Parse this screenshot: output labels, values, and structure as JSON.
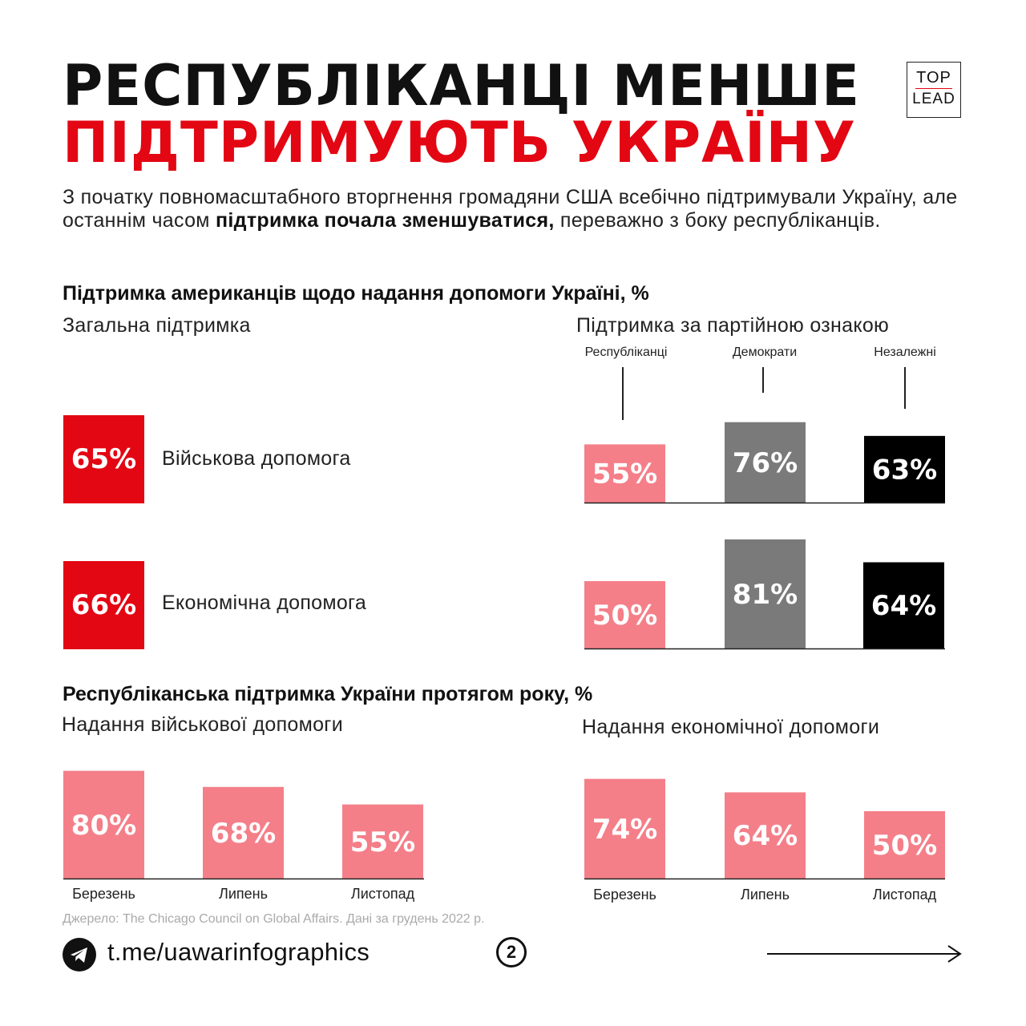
{
  "header": {
    "title_line1": "РЕСПУБЛІКАНЦІ МЕНШЕ",
    "title_line2": "ПІДТРИМУЮТЬ УКРАЇНУ",
    "logo_top": "TOP",
    "logo_bottom": "LEAD"
  },
  "intro": {
    "part1": "З початку повномасштабного вторгнення громадяни США всебічно підтримували Україну, але останнім часом ",
    "bold": "підтримка почала зменшуватися,",
    "part2": " переважно з боку республіканців."
  },
  "section1": {
    "heading": "Підтримка американців щодо надання допомоги Україні, %",
    "left_subheading": "Загальна підтримка",
    "right_subheading": "Підтримка за партійною ознакою",
    "party_labels": [
      "Республіканці",
      "Демократи",
      "Незалежні"
    ],
    "overall": [
      {
        "value": "65%",
        "label": "Військова допомога"
      },
      {
        "value": "66%",
        "label": "Економічна допомога"
      }
    ]
  },
  "section2": {
    "heading": "Республіканська підтримка України протягом року, %",
    "left_subheading": "Надання військової допомоги",
    "right_subheading": "Надання економічної допомоги"
  },
  "colors": {
    "red": "#e30613",
    "pink": "#f47f89",
    "gray": "#7a7a7a",
    "black": "#000000"
  },
  "chart_data": [
    {
      "type": "bar",
      "title": "Військова допомога — за партійною ознакою",
      "categories": [
        "Республіканці",
        "Демократи",
        "Незалежні"
      ],
      "values": [
        55,
        76,
        63
      ],
      "labels": [
        "55%",
        "76%",
        "63%"
      ],
      "ylabel": "%"
    },
    {
      "type": "bar",
      "title": "Економічна допомога — за партійною ознакою",
      "categories": [
        "Республіканці",
        "Демократи",
        "Незалежні"
      ],
      "values": [
        50,
        81,
        64
      ],
      "labels": [
        "50%",
        "81%",
        "64%"
      ],
      "ylabel": "%"
    },
    {
      "type": "bar",
      "title": "Надання військової допомоги",
      "categories": [
        "Березень",
        "Липень",
        "Листопад"
      ],
      "values": [
        80,
        68,
        55
      ],
      "labels": [
        "80%",
        "68%",
        "55%"
      ],
      "ylabel": "%"
    },
    {
      "type": "bar",
      "title": "Надання економічної допомоги",
      "categories": [
        "Березень",
        "Липень",
        "Листопад"
      ],
      "values": [
        74,
        64,
        50
      ],
      "labels": [
        "74%",
        "64%",
        "50%"
      ],
      "ylabel": "%"
    }
  ],
  "footer": {
    "source": "Джерело: The Chicago Council on Global Affairs. Дані за грудень 2022 р.",
    "link": "t.me/uawarinfographics",
    "page_number": "2"
  }
}
